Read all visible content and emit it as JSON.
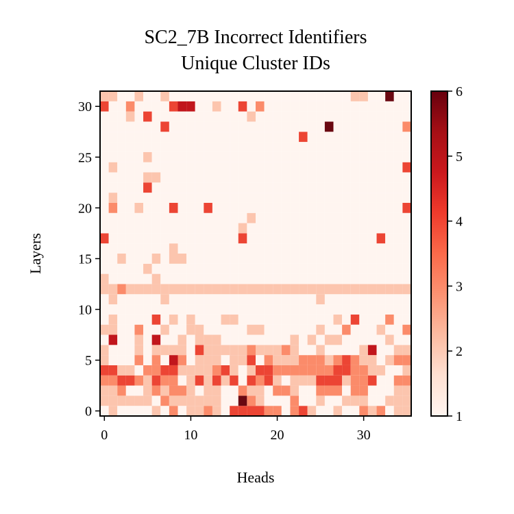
{
  "chart_data": {
    "type": "heatmap",
    "title": "SC2_7B Incorrect Identifiers",
    "subtitle": "Unique Cluster IDs",
    "xlabel": "Heads",
    "ylabel": "Layers",
    "xticks": [
      0,
      10,
      20,
      30
    ],
    "yticks": [
      0,
      5,
      10,
      15,
      20,
      25,
      30
    ],
    "xlim": [
      -0.5,
      35.5
    ],
    "ylim": [
      -0.5,
      31.5
    ],
    "colorbar": {
      "min": 1,
      "max": 6,
      "ticks": [
        1,
        2,
        3,
        4,
        5,
        6
      ],
      "colormap": "Reds"
    },
    "rows": [
      "121111213122321444433134211211323122",
      "222222132222221163211131121122211222",
      "223112323321221132213321133313311122",
      "334432433124242414342122244423341133",
      "442213344222234212443333333443322112",
      "211131315312221224132223332343221233",
      "211121222214222223222321121111251122",
      "151121511212221111111121212211111211",
      "221131121122111112211111121131112113",
      "121111412121112211111111111214111311",
      "111111111111111111111111111111111111",
      "121111121111111111111111121111111111",
      "223222222222222222222222222222222222",
      "211111211111111111111111111111111111",
      "111112111111111111111111111111111111",
      "112111212211111111111111111111111111",
      "111111112111111111111111111111111111",
      "411111111111111141111111111111114111",
      "111111111111111121111111111111111111",
      "111111111111111112111111111111111111",
      "131121114111411111111111111111111114",
      "121111111111111111111111111111111111",
      "111114111111111111111111111111111111",
      "111112211111111111111111111111111111",
      "121111111111111111111111111111111114",
      "111112111111111111111111111111111111",
      "111111111111111111111111111111111111",
      "111111111111111111111114111111111111",
      "111111141111111111111111116111111113",
      "111214111111111112111111111111111111",
      "411311114551121141311111111111111111",
      "221121121111111111111111111112211611"
    ]
  }
}
